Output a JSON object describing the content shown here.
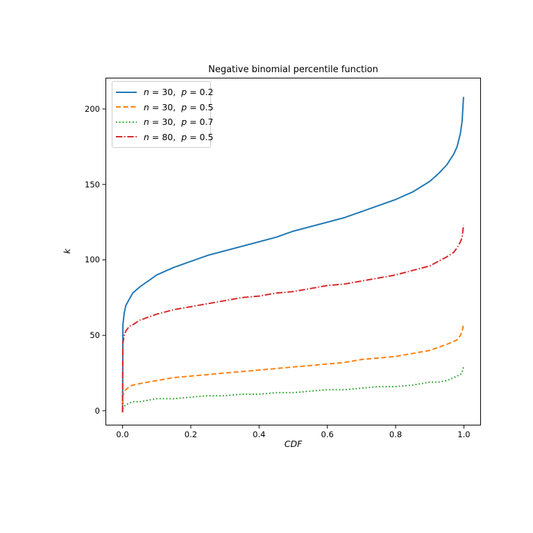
{
  "chart_data": {
    "type": "line",
    "title": "Negative binomial percentile function",
    "xlabel": "CDF",
    "ylabel": "k",
    "xlim": [
      -0.05,
      1.05
    ],
    "ylim": [
      -9.7,
      220.7
    ],
    "grid": false,
    "axes_color": "#000000",
    "legend_position": "upper-left",
    "legend_border_color": "#cccccc",
    "x_tick_values": [
      0,
      0.2,
      0.4,
      0.6,
      0.8,
      1.0
    ],
    "x_tick_labels": [
      "0.0",
      "0.2",
      "0.4",
      "0.6",
      "0.8",
      "1.0"
    ],
    "y_tick_values": [
      0,
      50,
      100,
      150,
      200
    ],
    "y_tick_labels": [
      "0",
      "50",
      "100",
      "150",
      "200"
    ],
    "x": [
      0,
      0.001,
      0.005,
      0.01,
      0.02,
      0.03,
      0.05,
      0.075,
      0.1,
      0.15,
      0.2,
      0.25,
      0.3,
      0.35,
      0.4,
      0.45,
      0.5,
      0.55,
      0.6,
      0.65,
      0.7,
      0.75,
      0.8,
      0.85,
      0.9,
      0.925,
      0.95,
      0.97,
      0.98,
      0.99,
      0.995,
      0.999
    ],
    "series": [
      {
        "name": "n = 30, p = 0.2",
        "label_parts": [
          "n",
          " = 30,  ",
          "p",
          " = 0.2"
        ],
        "color": "#1f77b4",
        "linestyle": "solid",
        "dash": "",
        "values": [
          -1,
          57,
          65,
          70,
          74,
          78,
          82,
          86,
          90,
          95,
          99,
          103,
          106,
          109,
          112,
          115,
          119,
          122,
          125,
          128,
          132,
          136,
          140,
          145,
          152,
          157,
          163,
          170,
          175,
          184,
          192,
          208
        ]
      },
      {
        "name": "n = 30, p = 0.5",
        "label_parts": [
          "n",
          " = 30,  ",
          "p",
          " = 0.5"
        ],
        "color": "#ff7f0e",
        "linestyle": "dashed",
        "dash": "7 3.7",
        "values": [
          -1,
          10,
          13,
          14,
          16,
          17,
          18,
          19,
          20,
          22,
          23,
          24,
          25,
          26,
          27,
          28,
          29,
          30,
          31,
          32,
          34,
          35,
          36,
          38,
          40,
          42,
          44,
          46,
          47,
          50,
          53,
          57
        ]
      },
      {
        "name": "n = 30, p = 0.7",
        "label_parts": [
          "n",
          " = 30,  ",
          "p",
          " = 0.7"
        ],
        "color": "#2ca02c",
        "linestyle": "dotted",
        "dash": "1.8 3",
        "values": [
          -1,
          2,
          3,
          4,
          5,
          6,
          6,
          7,
          8,
          8,
          9,
          10,
          10,
          11,
          11,
          12,
          12,
          13,
          14,
          14,
          15,
          16,
          16,
          17,
          19,
          19,
          20,
          22,
          23,
          24,
          26,
          29
        ]
      },
      {
        "name": "n = 80, p = 0.5",
        "label_parts": [
          "n",
          " = 80,  ",
          "p",
          " = 0.5"
        ],
        "color": "#d62728",
        "linestyle": "dashdot",
        "dash": "9.3 2.7 1.7 2.7",
        "values": [
          -1,
          45,
          50,
          53,
          56,
          57,
          60,
          62,
          64,
          67,
          69,
          71,
          73,
          75,
          76,
          78,
          79,
          81,
          83,
          84,
          86,
          88,
          90,
          93,
          96,
          99,
          102,
          105,
          108,
          112,
          115,
          123
        ]
      }
    ]
  }
}
